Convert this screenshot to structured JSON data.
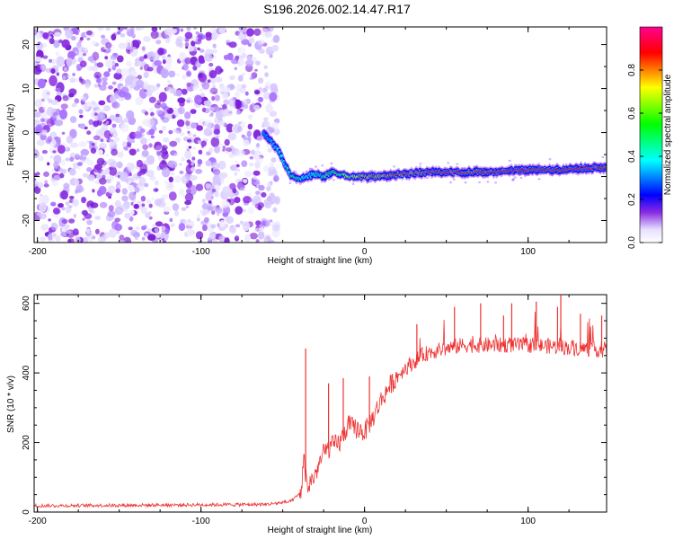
{
  "title": "S196.2026.002.14.47.R17",
  "chart_data": [
    {
      "type": "heatmap",
      "title": "",
      "xlabel": "Height of straight line (km)",
      "ylabel": "Frequency (Hz)",
      "xlim": [
        -202,
        148
      ],
      "ylim": [
        -25,
        24
      ],
      "xticks": [
        -200,
        -100,
        0,
        100
      ],
      "yticks": [
        -20,
        -10,
        0,
        10,
        20
      ],
      "colorbar": {
        "label": "Normalized spectral amplitude",
        "range": [
          0,
          1
        ],
        "ticks": [
          "0.0",
          "0.2",
          "0.4",
          "0.6",
          "0.8"
        ],
        "colors": [
          "#e6e0ff",
          "#8a2be2",
          "#0000ff",
          "#00ffff",
          "#00ff00",
          "#ffff00",
          "#ff0000",
          "#ff0090"
        ]
      },
      "noise_region_x": [
        -202,
        -60
      ],
      "ridge": {
        "x": [
          -62,
          -58,
          -55,
          -52,
          -50,
          -47,
          -45,
          -40,
          -35,
          -30,
          -25,
          -20,
          -15,
          -10,
          -5,
          0,
          10,
          20,
          40,
          60,
          80,
          100,
          120,
          140,
          148
        ],
        "y": [
          0,
          -1.5,
          -3,
          -4.5,
          -6,
          -8.5,
          -10,
          -10.5,
          -10,
          -9.5,
          -10,
          -9,
          -9.5,
          -10,
          -10,
          -10,
          -10,
          -9.5,
          -9,
          -9,
          -9,
          -8.5,
          -8.5,
          -8,
          -8
        ],
        "amplitude": [
          0.4,
          0.42,
          0.45,
          0.5,
          0.5,
          0.55,
          0.6,
          0.55,
          0.5,
          0.55,
          0.6,
          0.65,
          0.7,
          0.75,
          0.8,
          0.85,
          0.85,
          0.88,
          0.9,
          0.9,
          0.92,
          0.92,
          0.93,
          0.92,
          0.92
        ]
      }
    },
    {
      "type": "line",
      "title": "",
      "xlabel": "Height of straight line (km)",
      "ylabel": "SNR (10 * v/v)",
      "xlim": [
        -202,
        148
      ],
      "ylim": [
        0,
        625
      ],
      "xticks": [
        -200,
        -100,
        0,
        100
      ],
      "yticks": [
        0,
        200,
        400,
        600
      ],
      "color": "#ee3333",
      "series": [
        {
          "name": "SNR",
          "trend_x": [
            -202,
            -60,
            -45,
            -39,
            -37,
            -35,
            -30,
            -25,
            -20,
            -15,
            -10,
            -5,
            0,
            5,
            10,
            15,
            20,
            25,
            30,
            35,
            40,
            50,
            60,
            80,
            100,
            120,
            148
          ],
          "trend_y": [
            18,
            22,
            30,
            55,
            150,
            70,
            110,
            170,
            190,
            200,
            250,
            240,
            230,
            270,
            320,
            360,
            390,
            415,
            430,
            450,
            460,
            470,
            480,
            480,
            480,
            475,
            465
          ],
          "spikes": [
            {
              "x": -36,
              "y": 470
            },
            {
              "x": -22,
              "y": 370
            },
            {
              "x": -13,
              "y": 385
            },
            {
              "x": 3,
              "y": 390
            },
            {
              "x": 32,
              "y": 540
            },
            {
              "x": 55,
              "y": 590
            },
            {
              "x": 71,
              "y": 600
            },
            {
              "x": 85,
              "y": 565
            },
            {
              "x": 90,
              "y": 600
            },
            {
              "x": 105,
              "y": 605
            },
            {
              "x": 118,
              "y": 590
            },
            {
              "x": 120,
              "y": 625
            },
            {
              "x": 132,
              "y": 570
            },
            {
              "x": 145,
              "y": 565
            }
          ]
        }
      ]
    }
  ]
}
